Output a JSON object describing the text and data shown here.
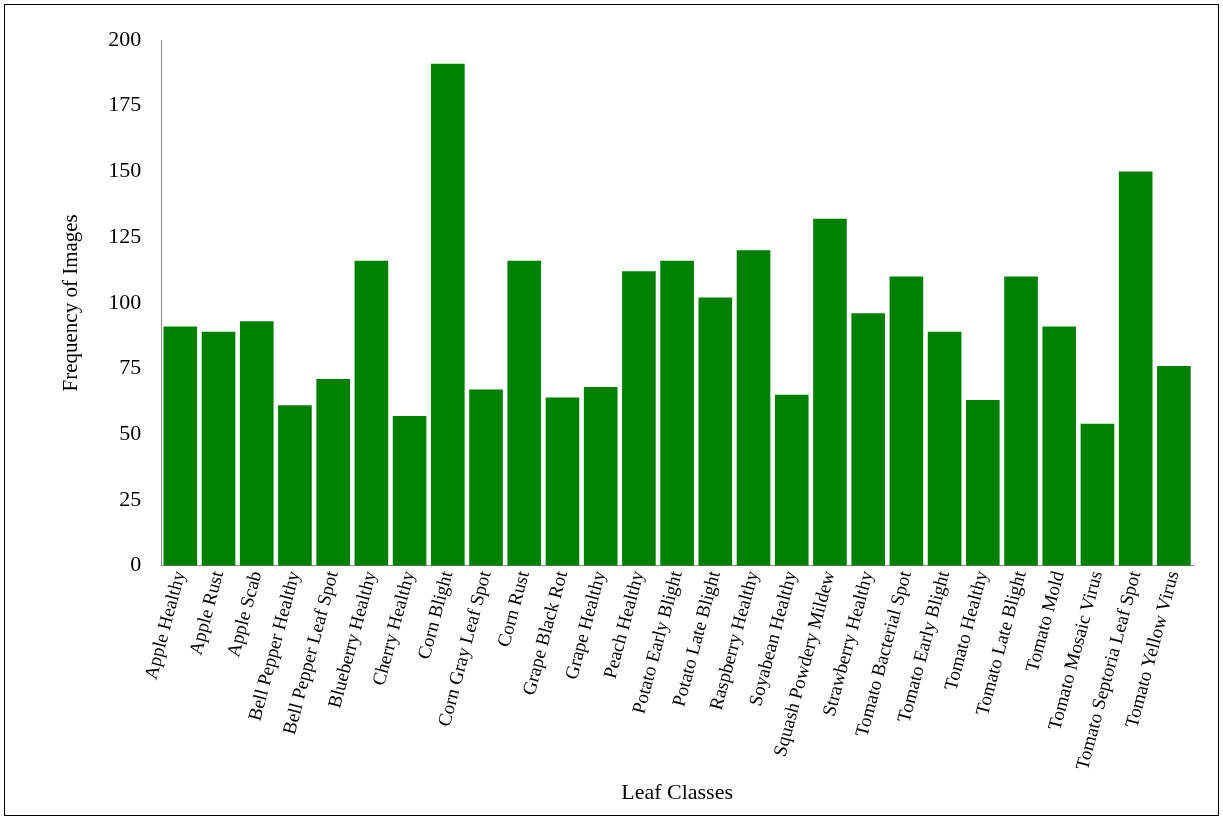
{
  "chart_data": {
    "type": "bar",
    "xlabel": "Leaf Classes",
    "ylabel": "Frequency of Images",
    "categories": [
      "Apple Healthy",
      "Apple Rust",
      "Apple Scab",
      "Bell Pepper Healthy",
      "Bell Pepper Leaf Spot",
      "Blueberry Healthy",
      "Cherry Healthy",
      "Corn Blight",
      "Corn Gray Leaf Spot",
      "Corn Rust",
      "Grape Black Rot",
      "Grape Healthy",
      "Peach Healthy",
      "Potato Early Blight",
      "Potato Late Blight",
      "Raspberry Healthy",
      "Soyabean Healthy",
      "Squash Powdery Mildew",
      "Strawberry Healthy",
      "Tomato Bacterial Spot",
      "Tomato Early Blight",
      "Tomato Healthy",
      "Tomato Late Blight",
      "Tomato Mold",
      "Tomato Mosaic Virus",
      "Tomato Septoria Leaf Spot",
      "Tomato Yellow Virus"
    ],
    "values": [
      91,
      89,
      93,
      61,
      71,
      116,
      57,
      191,
      67,
      116,
      64,
      68,
      112,
      116,
      102,
      120,
      65,
      132,
      96,
      110,
      89,
      63,
      110,
      91,
      54,
      150,
      76
    ],
    "color": "#008000",
    "ylim": [
      0,
      200
    ],
    "yticks": [
      0,
      25,
      50,
      75,
      100,
      125,
      150,
      175,
      200
    ],
    "grid": false
  }
}
